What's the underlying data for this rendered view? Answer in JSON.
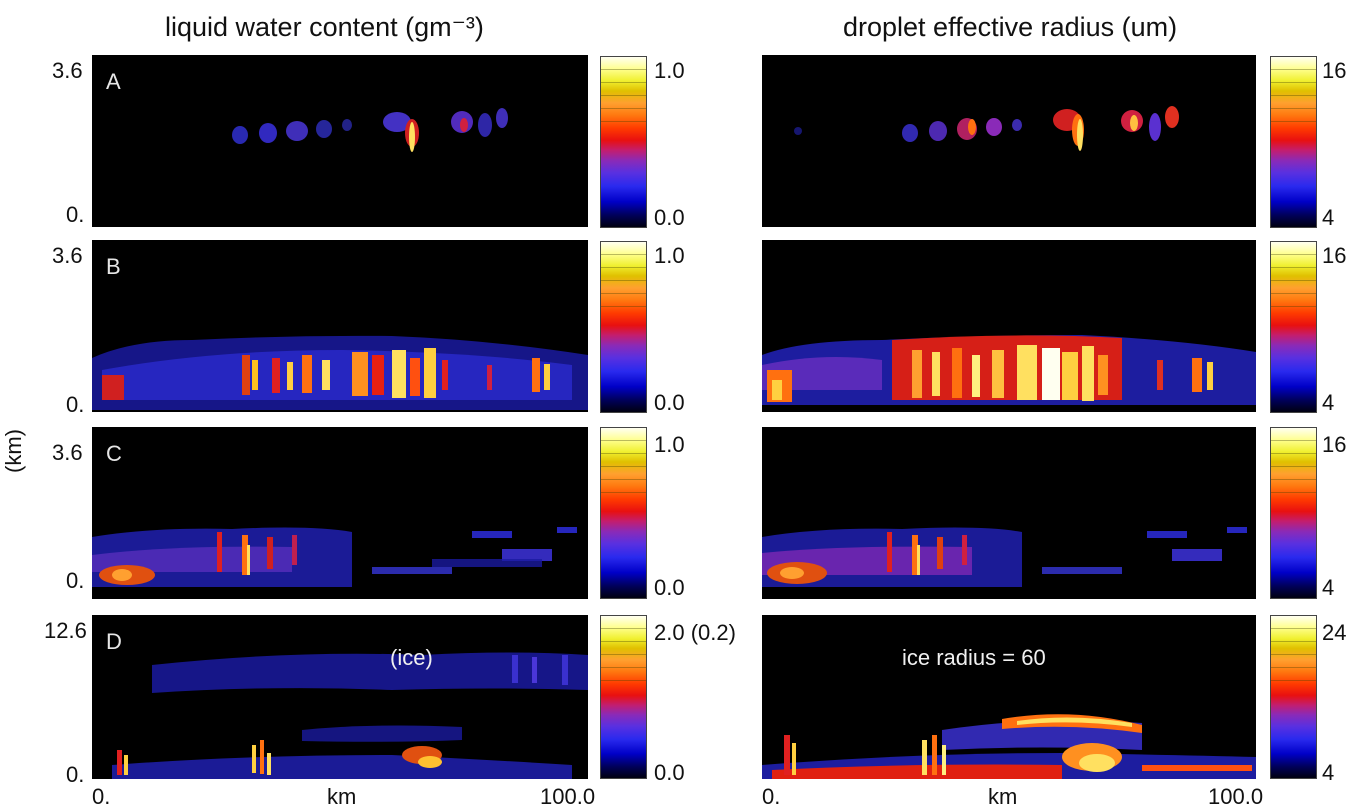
{
  "chart_data": [
    {
      "type": "heatmap",
      "title": "liquid water content (gm⁻³)",
      "ylabel": "(km)",
      "xlabel": "km",
      "xlim": [
        0,
        100
      ],
      "x_ticks": [
        "0.",
        "100.0"
      ],
      "colorscale": [
        "#000010",
        "#0000c8",
        "#8a2ab8",
        "#e81010",
        "#ffa030",
        "#f0f030",
        "#fffff0"
      ],
      "panels": [
        {
          "label": "A",
          "ylim": [
            0,
            3.6
          ],
          "y_ticks": [
            "3.6",
            "0."
          ],
          "cbar": {
            "max": "1.0",
            "min": "0.0"
          },
          "annotation": ""
        },
        {
          "label": "B",
          "ylim": [
            0,
            3.6
          ],
          "y_ticks": [
            "3.6",
            "0."
          ],
          "cbar": {
            "max": "1.0",
            "min": "0.0"
          },
          "annotation": ""
        },
        {
          "label": "C",
          "ylim": [
            0,
            3.6
          ],
          "y_ticks": [
            "3.6",
            "0."
          ],
          "cbar": {
            "max": "1.0",
            "min": "0.0"
          },
          "annotation": ""
        },
        {
          "label": "D",
          "ylim": [
            0,
            12.6
          ],
          "y_ticks": [
            "12.6",
            "0."
          ],
          "cbar": {
            "max": "2.0 (0.2)",
            "min": "0.0"
          },
          "annotation": "(ice)"
        }
      ]
    },
    {
      "type": "heatmap",
      "title": "droplet effective radius (um)",
      "xlabel": "km",
      "xlim": [
        0,
        100
      ],
      "x_ticks": [
        "0.",
        "100.0"
      ],
      "colorscale": [
        "#000010",
        "#0000c8",
        "#8a2ab8",
        "#e81010",
        "#ffa030",
        "#f0f030",
        "#fffff0"
      ],
      "panels": [
        {
          "label": "",
          "cbar": {
            "max": "16",
            "min": "4"
          },
          "annotation": ""
        },
        {
          "label": "",
          "cbar": {
            "max": "16",
            "min": "4"
          },
          "annotation": ""
        },
        {
          "label": "",
          "cbar": {
            "max": "16",
            "min": "4"
          },
          "annotation": ""
        },
        {
          "label": "",
          "cbar": {
            "max": "24",
            "min": "4"
          },
          "annotation": "ice radius = 60"
        }
      ]
    }
  ]
}
